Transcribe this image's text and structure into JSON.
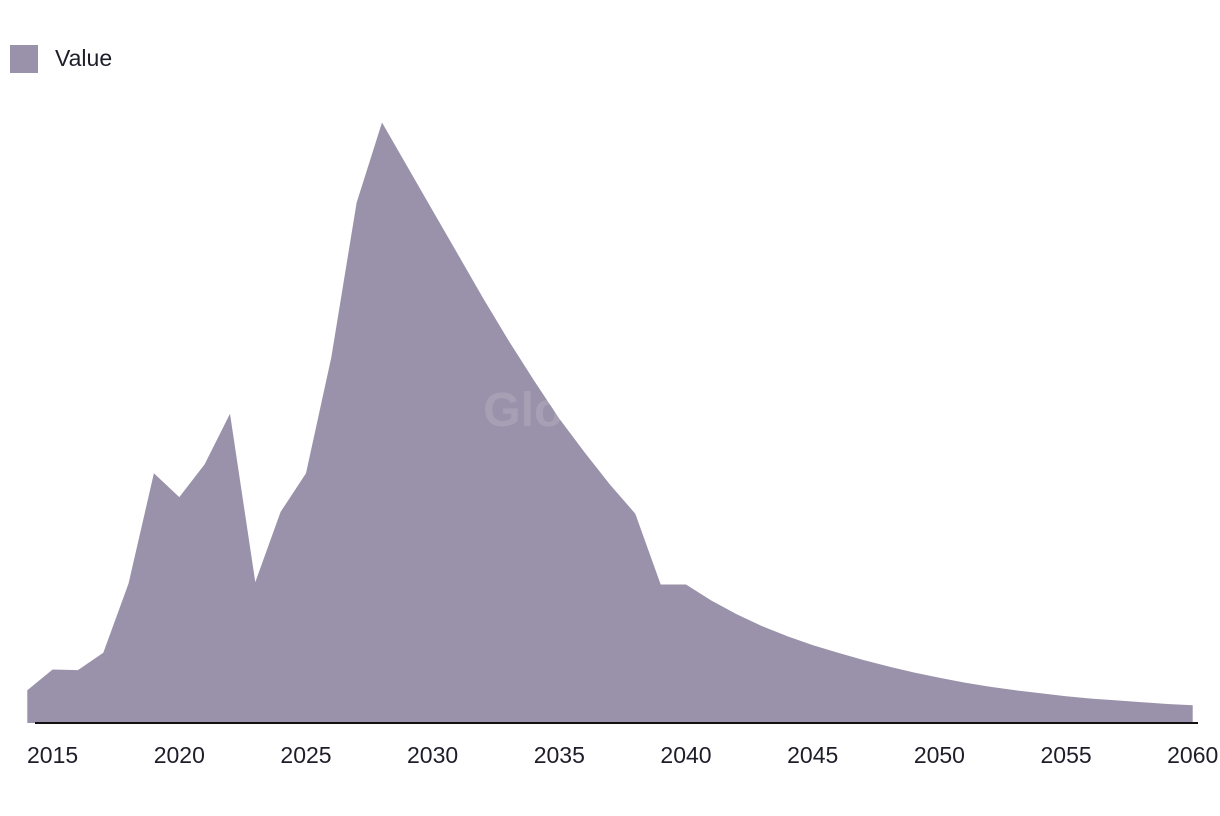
{
  "watermark": "GlobalData",
  "legend": {
    "label": "Value",
    "color": "#9a92aa"
  },
  "axis_color": "#111111",
  "chart_data": {
    "type": "area",
    "series": [
      {
        "name": "Value",
        "color": "#9a92aa",
        "x": [
          2014,
          2015,
          2016,
          2017,
          2018,
          2019,
          2020,
          2021,
          2022,
          2023,
          2024,
          2025,
          2026,
          2027,
          2028,
          2029,
          2030,
          2031,
          2032,
          2033,
          2034,
          2035,
          2036,
          2037,
          2038,
          2039,
          2040,
          2041,
          2042,
          2043,
          2044,
          2045,
          2046,
          2047,
          2048,
          2049,
          2050,
          2051,
          2052,
          2053,
          2054,
          2055,
          2056,
          2057,
          2058,
          2059,
          2060
        ],
        "values": [
          5.5,
          9.0,
          8.9,
          11.8,
          23.5,
          42.0,
          38.0,
          43.5,
          52.0,
          23.7,
          35.5,
          42.0,
          61.5,
          87.5,
          101.0,
          93.6,
          86.2,
          78.8,
          71.4,
          64.3,
          57.6,
          51.2,
          45.5,
          40.1,
          35.2,
          23.3,
          23.3,
          20.6,
          18.3,
          16.3,
          14.6,
          13.1,
          11.8,
          10.6,
          9.5,
          8.5,
          7.6,
          6.8,
          6.1,
          5.5,
          5.0,
          4.5,
          4.1,
          3.8,
          3.5,
          3.2,
          3.0
        ]
      }
    ],
    "x_ticks": [
      "2015",
      "2020",
      "2025",
      "2030",
      "2035",
      "2040",
      "2045",
      "2050",
      "2055",
      "2060"
    ],
    "xlim": [
      2013.2,
      2060.8
    ],
    "ylim": [
      0,
      110
    ],
    "grid": false,
    "legend_position": "top-left"
  }
}
